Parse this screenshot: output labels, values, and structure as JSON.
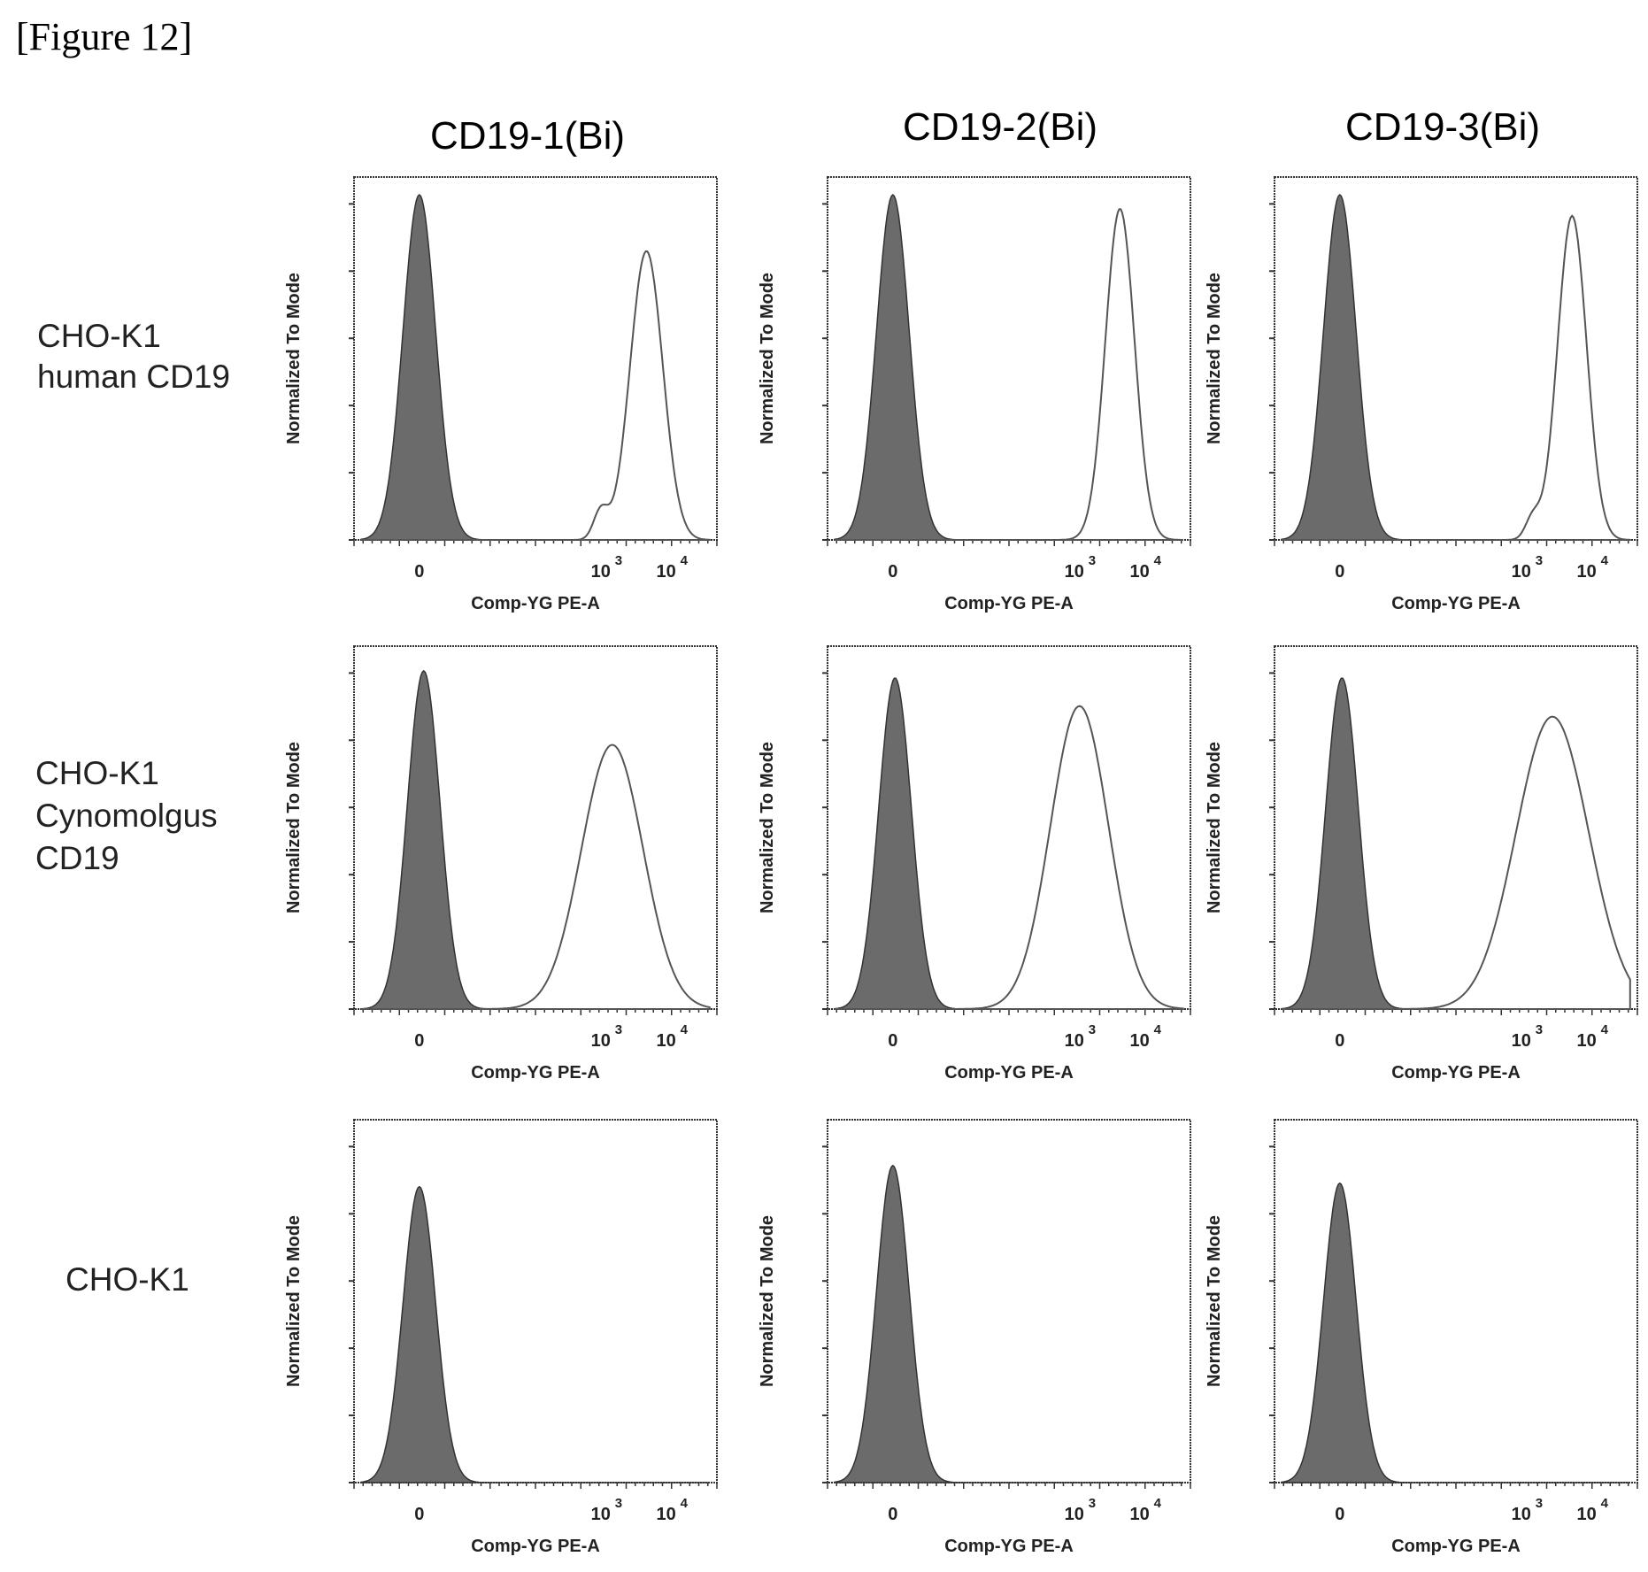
{
  "figure_label": "[Figure 12]",
  "column_titles": [
    "CD19-1(Bi)",
    "CD19-2(Bi)",
    "CD19-3(Bi)"
  ],
  "row_labels": [
    [
      "CHO-K1",
      "human CD19"
    ],
    [
      "CHO-K1",
      "Cynomolgus",
      "CD19"
    ],
    [
      "CHO-K1"
    ]
  ],
  "axis": {
    "xlabel": "Comp-YG PE-A",
    "ylabel": "Normalized To Mode",
    "xticks": [
      {
        "value": 0,
        "base": "0",
        "exp": ""
      },
      {
        "value": 1000,
        "base": "10",
        "exp": "3"
      },
      {
        "value": 10000,
        "base": "10",
        "exp": "4"
      }
    ]
  },
  "colors": {
    "filled_histogram": "#6b6b6b",
    "outline_histogram": "#555555",
    "frame": "#333333"
  },
  "chart_data": [
    {
      "type": "area",
      "title": "CD19-1(Bi)",
      "row": "CHO-K1 human CD19",
      "xlabel": "Comp-YG PE-A",
      "ylabel": "Normalized To Mode",
      "xscale": "biexponential",
      "ylim": [
        0,
        100
      ],
      "series": [
        {
          "role": "control (filled)",
          "peak_x": 0,
          "peak_y": 98,
          "width": 0.09
        },
        {
          "role": "sample (outline)",
          "peak_x": 5000,
          "peak_y": 82,
          "width": 0.09,
          "shoulder_x": 1000,
          "shoulder_y": 8
        }
      ]
    },
    {
      "type": "area",
      "title": "CD19-2(Bi)",
      "row": "CHO-K1 human CD19",
      "xlabel": "Comp-YG PE-A",
      "ylabel": "Normalized To Mode",
      "xscale": "biexponential",
      "ylim": [
        0,
        100
      ],
      "series": [
        {
          "role": "control (filled)",
          "peak_x": 0,
          "peak_y": 98,
          "width": 0.09
        },
        {
          "role": "sample (outline)",
          "peak_x": 5000,
          "peak_y": 94,
          "width": 0.08
        }
      ]
    },
    {
      "type": "area",
      "title": "CD19-3(Bi)",
      "row": "CHO-K1 human CD19",
      "xlabel": "Comp-YG PE-A",
      "ylabel": "Normalized To Mode",
      "xscale": "biexponential",
      "ylim": [
        0,
        100
      ],
      "series": [
        {
          "role": "control (filled)",
          "peak_x": 0,
          "peak_y": 98,
          "width": 0.09
        },
        {
          "role": "sample (outline)",
          "peak_x": 6000,
          "peak_y": 92,
          "width": 0.08,
          "shoulder_x": 1500,
          "shoulder_y": 6
        }
      ]
    },
    {
      "type": "area",
      "title": "CD19-1(Bi)",
      "row": "CHO-K1 Cynomolgus CD19",
      "xlabel": "Comp-YG PE-A",
      "ylabel": "Normalized To Mode",
      "xscale": "biexponential",
      "ylim": [
        0,
        100
      ],
      "series": [
        {
          "role": "control (filled)",
          "peak_x": 10,
          "peak_y": 96,
          "width": 0.09
        },
        {
          "role": "sample (outline)",
          "peak_x": 1500,
          "peak_y": 75,
          "width": 0.17
        }
      ]
    },
    {
      "type": "area",
      "title": "CD19-2(Bi)",
      "row": "CHO-K1 Cynomolgus CD19",
      "xlabel": "Comp-YG PE-A",
      "ylabel": "Normalized To Mode",
      "xscale": "biexponential",
      "ylim": [
        0,
        100
      ],
      "series": [
        {
          "role": "control (filled)",
          "peak_x": 5,
          "peak_y": 94,
          "width": 0.09
        },
        {
          "role": "sample (outline)",
          "peak_x": 1200,
          "peak_y": 86,
          "width": 0.16
        }
      ]
    },
    {
      "type": "area",
      "title": "CD19-3(Bi)",
      "row": "CHO-K1 Cynomolgus CD19",
      "xlabel": "Comp-YG PE-A",
      "ylabel": "Normalized To Mode",
      "xscale": "biexponential",
      "ylim": [
        0,
        100
      ],
      "series": [
        {
          "role": "control (filled)",
          "peak_x": 5,
          "peak_y": 94,
          "width": 0.09
        },
        {
          "role": "sample (outline)",
          "peak_x": 3000,
          "peak_y": 83,
          "width": 0.2
        }
      ]
    },
    {
      "type": "area",
      "title": "CD19-1(Bi)",
      "row": "CHO-K1",
      "xlabel": "Comp-YG PE-A",
      "ylabel": "Normalized To Mode",
      "xscale": "biexponential",
      "ylim": [
        0,
        100
      ],
      "series": [
        {
          "role": "control (filled)",
          "peak_x": 0,
          "peak_y": 84,
          "width": 0.09
        }
      ]
    },
    {
      "type": "area",
      "title": "CD19-2(Bi)",
      "row": "CHO-K1",
      "xlabel": "Comp-YG PE-A",
      "ylabel": "Normalized To Mode",
      "xscale": "biexponential",
      "ylim": [
        0,
        100
      ],
      "series": [
        {
          "role": "control (filled)",
          "peak_x": 0,
          "peak_y": 90,
          "width": 0.09
        }
      ]
    },
    {
      "type": "area",
      "title": "CD19-3(Bi)",
      "row": "CHO-K1",
      "xlabel": "Comp-YG PE-A",
      "ylabel": "Normalized To Mode",
      "xscale": "biexponential",
      "ylim": [
        0,
        100
      ],
      "series": [
        {
          "role": "control (filled)",
          "peak_x": 0,
          "peak_y": 85,
          "width": 0.09
        }
      ]
    }
  ]
}
